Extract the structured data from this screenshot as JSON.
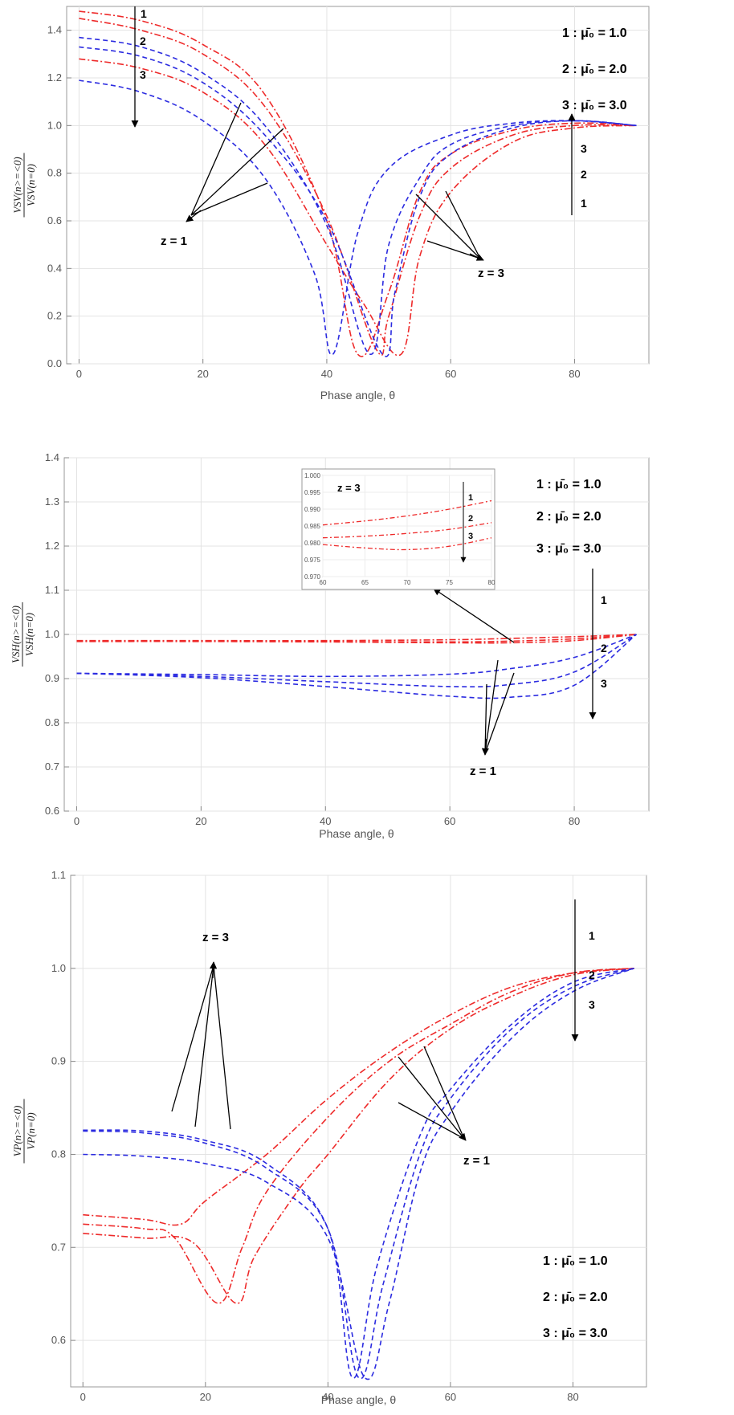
{
  "legend": [
    "1 : μ̄₀ = 1.0",
    "2 : μ̄₀ = 2.0",
    "3 : μ̄₀ = 3.0"
  ],
  "colors": {
    "red": "#ee2a2a",
    "blue": "#2b2be0",
    "arrow": "#000000"
  },
  "chart_data": [
    {
      "type": "line",
      "panel": "top",
      "xlabel": "Phase angle, θ",
      "ylabel": "VSV(n>=<0) / VSV(n=0)",
      "xlim": [
        -2,
        92
      ],
      "ylim": [
        0,
        1.5
      ],
      "xticks": [
        0,
        20,
        40,
        60,
        80
      ],
      "yticks": [
        0.0,
        0.2,
        0.4,
        0.6,
        0.8,
        1.0,
        1.2,
        1.4
      ],
      "grid": true,
      "annotations": {
        "z1": "z = 1",
        "z3": "z = 3",
        "curve_numbers": [
          "1",
          "2",
          "3"
        ]
      },
      "series": [
        {
          "name": "z=3, μ̄₀=1.0",
          "color": "red",
          "style": "dashdot",
          "x": [
            0,
            10,
            20,
            30,
            40,
            45,
            50,
            55,
            60,
            70,
            80,
            90
          ],
          "y": [
            1.48,
            1.44,
            1.34,
            1.13,
            0.6,
            0.04,
            0.3,
            0.72,
            0.88,
            0.98,
            1.01,
            1.0
          ]
        },
        {
          "name": "z=3, μ̄₀=2.0",
          "color": "red",
          "style": "dashdot",
          "x": [
            0,
            10,
            20,
            30,
            40,
            48,
            50,
            55,
            60,
            70,
            80,
            90
          ],
          "y": [
            1.45,
            1.4,
            1.3,
            1.08,
            0.62,
            0.06,
            0.2,
            0.62,
            0.82,
            0.96,
            1.0,
            1.0
          ]
        },
        {
          "name": "z=3, μ̄₀=3.0",
          "color": "red",
          "style": "dashdot",
          "x": [
            0,
            10,
            20,
            30,
            40,
            46,
            52,
            55,
            60,
            70,
            80,
            90
          ],
          "y": [
            1.28,
            1.24,
            1.14,
            0.92,
            0.5,
            0.25,
            0.04,
            0.45,
            0.72,
            0.93,
            0.99,
            1.0
          ]
        },
        {
          "name": "z=1, μ̄₀=1.0",
          "color": "blue",
          "style": "dash",
          "x": [
            0,
            10,
            20,
            30,
            40,
            47,
            50,
            55,
            60,
            70,
            80,
            90
          ],
          "y": [
            1.37,
            1.33,
            1.22,
            1.0,
            0.58,
            0.04,
            0.5,
            0.78,
            0.92,
            1.0,
            1.02,
            1.0
          ]
        },
        {
          "name": "z=1, μ̄₀=2.0",
          "color": "blue",
          "style": "dash",
          "x": [
            0,
            10,
            20,
            30,
            40,
            49,
            51,
            55,
            60,
            70,
            80,
            90
          ],
          "y": [
            1.33,
            1.29,
            1.18,
            0.96,
            0.6,
            0.04,
            0.3,
            0.7,
            0.88,
            0.99,
            1.02,
            1.0
          ]
        },
        {
          "name": "z=1, μ̄₀=3.0",
          "color": "blue",
          "style": "dash",
          "x": [
            0,
            10,
            20,
            30,
            38,
            41,
            45,
            50,
            60,
            70,
            80,
            90
          ],
          "y": [
            1.19,
            1.14,
            1.02,
            0.78,
            0.38,
            0.04,
            0.55,
            0.82,
            0.96,
            1.01,
            1.02,
            1.0
          ]
        }
      ]
    },
    {
      "type": "line",
      "panel": "middle",
      "xlabel": "Phase angle, θ",
      "ylabel": "VSH(n>=<0) / VSH(n=0)",
      "xlim": [
        -2,
        92
      ],
      "ylim": [
        0.6,
        1.4
      ],
      "xticks": [
        0,
        20,
        40,
        60,
        80
      ],
      "yticks": [
        0.6,
        0.7,
        0.8,
        0.9,
        1.0,
        1.1,
        1.2,
        1.3,
        1.4
      ],
      "grid": true,
      "annotations": {
        "z1": "z = 1",
        "curve_numbers": [
          "1",
          "2",
          "3"
        ]
      },
      "series": [
        {
          "name": "z=3, μ̄₀=1.0",
          "color": "red",
          "style": "dashdot",
          "x": [
            0,
            20,
            40,
            60,
            70,
            80,
            90
          ],
          "y": [
            0.986,
            0.986,
            0.986,
            0.988,
            0.991,
            0.995,
            1.0
          ]
        },
        {
          "name": "z=3, μ̄₀=2.0",
          "color": "red",
          "style": "dashdot",
          "x": [
            0,
            20,
            40,
            60,
            70,
            80,
            90
          ],
          "y": [
            0.985,
            0.985,
            0.984,
            0.983,
            0.985,
            0.99,
            1.0
          ]
        },
        {
          "name": "z=3, μ̄₀=3.0",
          "color": "red",
          "style": "dashdot",
          "x": [
            0,
            20,
            40,
            60,
            70,
            80,
            90
          ],
          "y": [
            0.984,
            0.984,
            0.983,
            0.981,
            0.981,
            0.986,
            1.0
          ]
        },
        {
          "name": "z=1, μ̄₀=1.0",
          "color": "blue",
          "style": "dash",
          "x": [
            0,
            20,
            40,
            60,
            70,
            80,
            90
          ],
          "y": [
            0.912,
            0.909,
            0.905,
            0.91,
            0.923,
            0.948,
            1.0
          ]
        },
        {
          "name": "z=1, μ̄₀=2.0",
          "color": "blue",
          "style": "dash",
          "x": [
            0,
            20,
            40,
            60,
            70,
            80,
            90
          ],
          "y": [
            0.912,
            0.905,
            0.893,
            0.882,
            0.887,
            0.915,
            1.0
          ]
        },
        {
          "name": "z=1, μ̄₀=3.0",
          "color": "blue",
          "style": "dash",
          "x": [
            0,
            20,
            40,
            60,
            70,
            80,
            90
          ],
          "y": [
            0.912,
            0.902,
            0.882,
            0.86,
            0.858,
            0.885,
            1.0
          ]
        }
      ],
      "inset": {
        "title": "z = 3",
        "xlim": [
          60,
          80
        ],
        "ylim": [
          0.97,
          1.0
        ],
        "xticks": [
          60,
          65,
          70,
          75,
          80
        ],
        "yticks": [
          0.97,
          0.975,
          0.98,
          0.985,
          0.99,
          0.995,
          1.0
        ],
        "ytick_labels": [
          "0.970",
          "0.975",
          "0.980",
          "0.985",
          "0.990",
          "0.995",
          "1.000"
        ],
        "curve_numbers": [
          "1",
          "2",
          "3"
        ],
        "series": [
          {
            "name": "μ̄₀=1.0",
            "x": [
              60,
              65,
              70,
              75,
              80
            ],
            "y": [
              0.9853,
              0.9865,
              0.988,
              0.99,
              0.9925
            ]
          },
          {
            "name": "μ̄₀=2.0",
            "x": [
              60,
              65,
              70,
              75,
              80
            ],
            "y": [
              0.9815,
              0.982,
              0.9828,
              0.984,
              0.986
            ]
          },
          {
            "name": "μ̄₀=3.0",
            "x": [
              60,
              65,
              70,
              75,
              80
            ],
            "y": [
              0.9795,
              0.9785,
              0.978,
              0.979,
              0.9815
            ]
          }
        ]
      }
    },
    {
      "type": "line",
      "panel": "bottom",
      "xlabel": "Phase angle, θ",
      "ylabel": "VP(n>=<0) / VP(n=0)",
      "xlim": [
        -2,
        92
      ],
      "ylim": [
        0.55,
        1.1
      ],
      "xticks": [
        0,
        20,
        40,
        60,
        80
      ],
      "yticks": [
        0.6,
        0.7,
        0.8,
        0.9,
        1.0,
        1.1
      ],
      "grid": true,
      "annotations": {
        "z1": "z = 1",
        "z3": "z = 3",
        "curve_numbers": [
          "1",
          "2",
          "3"
        ]
      },
      "series": [
        {
          "name": "z=3, μ̄₀=1.0",
          "color": "red",
          "style": "dashdot",
          "x": [
            0,
            10,
            16,
            20,
            30,
            40,
            50,
            60,
            70,
            80,
            90
          ],
          "y": [
            0.735,
            0.73,
            0.725,
            0.75,
            0.8,
            0.86,
            0.91,
            0.95,
            0.98,
            0.995,
            1.0
          ]
        },
        {
          "name": "z=3, μ̄₀=2.0",
          "color": "red",
          "style": "dashdot",
          "x": [
            0,
            10,
            15,
            22,
            26,
            30,
            40,
            50,
            60,
            70,
            80,
            90
          ],
          "y": [
            0.725,
            0.72,
            0.71,
            0.64,
            0.7,
            0.76,
            0.84,
            0.9,
            0.94,
            0.975,
            0.995,
            1.0
          ]
        },
        {
          "name": "z=3, μ̄₀=3.0",
          "color": "red",
          "style": "dashdot",
          "x": [
            0,
            10,
            18,
            25,
            28,
            35,
            40,
            50,
            60,
            70,
            80,
            90
          ],
          "y": [
            0.715,
            0.71,
            0.705,
            0.64,
            0.69,
            0.76,
            0.8,
            0.88,
            0.935,
            0.97,
            0.993,
            1.0
          ]
        },
        {
          "name": "z=1, μ̄₀=1.0",
          "color": "blue",
          "style": "dash",
          "x": [
            0,
            10,
            20,
            30,
            40,
            44,
            48,
            55,
            60,
            70,
            80,
            90
          ],
          "y": [
            0.826,
            0.825,
            0.815,
            0.79,
            0.72,
            0.56,
            0.68,
            0.82,
            0.87,
            0.94,
            0.985,
            1.0
          ]
        },
        {
          "name": "z=1, μ̄₀=2.0",
          "color": "blue",
          "style": "dash",
          "x": [
            0,
            10,
            20,
            30,
            40,
            45,
            49,
            55,
            60,
            70,
            80,
            90
          ],
          "y": [
            0.825,
            0.823,
            0.812,
            0.785,
            0.72,
            0.56,
            0.66,
            0.8,
            0.86,
            0.935,
            0.98,
            1.0
          ]
        },
        {
          "name": "z=1, μ̄₀=3.0",
          "color": "blue",
          "style": "dash",
          "x": [
            0,
            10,
            20,
            30,
            40,
            46,
            50,
            55,
            60,
            70,
            80,
            90
          ],
          "y": [
            0.8,
            0.798,
            0.79,
            0.77,
            0.71,
            0.56,
            0.64,
            0.78,
            0.845,
            0.925,
            0.975,
            1.0
          ]
        }
      ]
    }
  ]
}
